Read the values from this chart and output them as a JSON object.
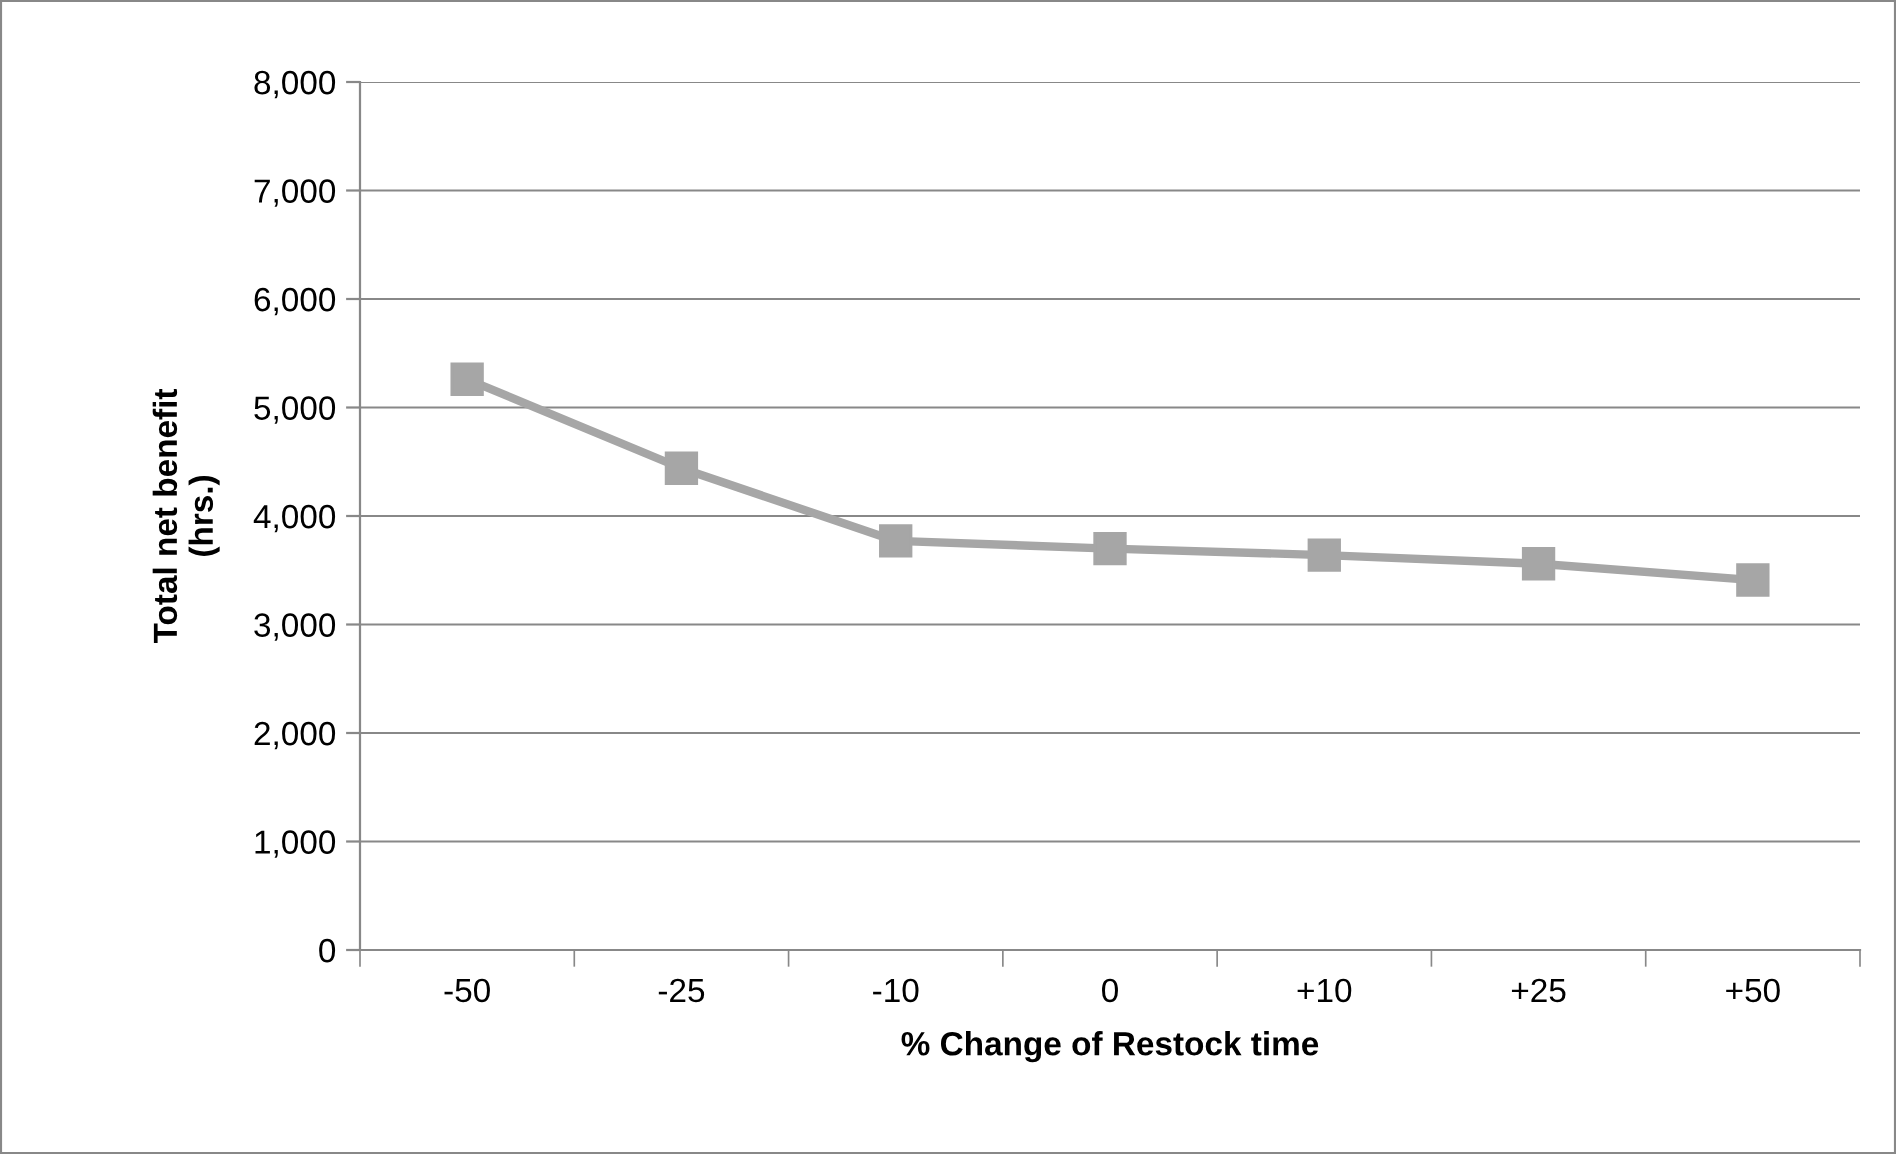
{
  "chart_data": {
    "type": "line",
    "xlabel": "% Change of Restock time",
    "ylabel": "Total net benefit\n(hrs.)",
    "categories": [
      "-50",
      "-25",
      "-10",
      "0",
      "+10",
      "+25",
      "+50"
    ],
    "series": [
      {
        "color": "#a6a6a6",
        "values": [
          5260,
          4440,
          3770,
          3700,
          3640,
          3560,
          3410
        ]
      }
    ],
    "ylim": [
      0,
      8000
    ],
    "yticks": [
      {
        "value": 0,
        "label": "0"
      },
      {
        "value": 1000,
        "label": "1,000"
      },
      {
        "value": 2000,
        "label": "2,000"
      },
      {
        "value": 3000,
        "label": "3,000"
      },
      {
        "value": 4000,
        "label": "4,000"
      },
      {
        "value": 5000,
        "label": "5,000"
      },
      {
        "value": 6000,
        "label": "6,000"
      },
      {
        "value": 7000,
        "label": "7,000"
      },
      {
        "value": 8000,
        "label": "8,000"
      }
    ],
    "grid": "y",
    "marker": "square",
    "line_style": "solid"
  }
}
